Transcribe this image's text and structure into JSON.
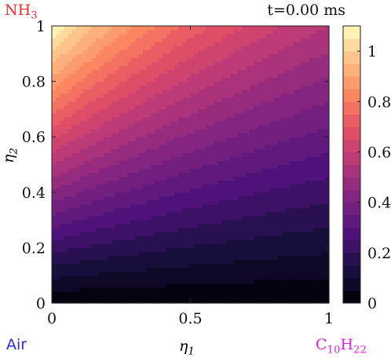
{
  "corner_labels": {
    "top_left": {
      "base": "NH",
      "sub": "3",
      "color": "#ff2a2a"
    },
    "top_right": {
      "text": "t=0.00 ms",
      "color": "#111111"
    },
    "bottom_left": {
      "text": "Air",
      "color": "#2a2ae8"
    },
    "bottom_right": {
      "base": "C",
      "sub1": "10",
      "mid": "H",
      "sub2": "22",
      "color": "#e81ee8"
    }
  },
  "chart_data": {
    "type": "heatmap",
    "plot_style": "filled contour",
    "xlabel": {
      "symbol": "η",
      "sub": "1"
    },
    "ylabel": {
      "symbol": "η",
      "sub": "2"
    },
    "xlim": [
      0,
      1
    ],
    "ylim": [
      0,
      1
    ],
    "x_ticks": [
      {
        "value": 0,
        "label": "0"
      },
      {
        "value": 0.5,
        "label": "0.5"
      },
      {
        "value": 1,
        "label": "1"
      }
    ],
    "y_ticks": [
      {
        "value": 0,
        "label": "0"
      },
      {
        "value": 0.2,
        "label": "0.2"
      },
      {
        "value": 0.4,
        "label": "0.4"
      },
      {
        "value": 0.6,
        "label": "0.6"
      },
      {
        "value": 0.8,
        "label": "0.8"
      },
      {
        "value": 1,
        "label": "1"
      }
    ],
    "colorbar": {
      "range": [
        0,
        1.1
      ],
      "ticks": [
        {
          "value": 0,
          "label": "0"
        },
        {
          "value": 0.2,
          "label": "0.2"
        },
        {
          "value": 0.4,
          "label": "0.4"
        },
        {
          "value": 0.6,
          "label": "0.6"
        },
        {
          "value": 0.8,
          "label": "0.8"
        },
        {
          "value": 1,
          "label": "1"
        }
      ],
      "levels": 22,
      "colormap": "magma"
    },
    "field": {
      "description": "value increases with eta2 and decreases with eta1; max ~1.1 at (0,1), 0 along eta2=0",
      "samples": [
        {
          "eta1": 0,
          "eta2": 1,
          "value": 1.1
        },
        {
          "eta1": 1,
          "eta2": 1,
          "value": 0.55
        },
        {
          "eta1": 0,
          "eta2": 0.5,
          "value": 0.6
        },
        {
          "eta1": 1,
          "eta2": 0.5,
          "value": 0.32
        },
        {
          "eta1": 0.5,
          "eta2": 0,
          "value": 0
        }
      ]
    },
    "grid": false
  }
}
